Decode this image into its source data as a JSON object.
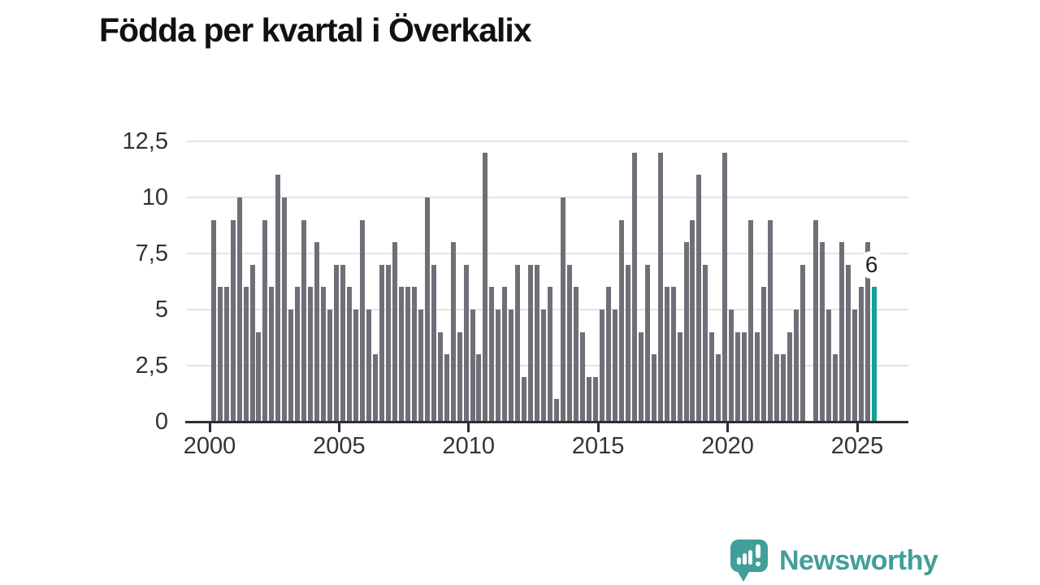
{
  "title": "Födda per kvartal i Överkalix",
  "chart_data": {
    "type": "bar",
    "title": "Födda per kvartal i Överkalix",
    "frequency": "quarterly",
    "x_start": "2000-Q1",
    "x_end": "2025-Q3",
    "values": [
      9,
      6,
      6,
      9,
      10,
      6,
      7,
      4,
      9,
      6,
      11,
      10,
      5,
      6,
      9,
      6,
      8,
      6,
      5,
      7,
      7,
      6,
      5,
      9,
      5,
      3,
      7,
      7,
      8,
      6,
      6,
      6,
      5,
      10,
      7,
      4,
      3,
      8,
      4,
      7,
      5,
      3,
      12,
      6,
      5,
      6,
      5,
      7,
      2,
      7,
      7,
      5,
      6,
      1,
      10,
      7,
      6,
      4,
      2,
      2,
      5,
      6,
      5,
      9,
      7,
      12,
      4,
      7,
      3,
      12,
      6,
      6,
      4,
      8,
      9,
      11,
      7,
      4,
      3,
      12,
      5,
      4,
      4,
      9,
      4,
      6,
      9,
      3,
      3,
      4,
      5,
      7,
      0,
      9,
      8,
      5,
      3,
      8,
      7,
      5,
      6,
      8,
      6
    ],
    "x_tick_labels": [
      "2000",
      "2005",
      "2010",
      "2015",
      "2020",
      "2025"
    ],
    "y_tick_labels": [
      "0",
      "2,5",
      "5",
      "7,5",
      "10",
      "12,5"
    ],
    "y_tick_values": [
      0,
      2.5,
      5,
      7.5,
      10,
      12.5
    ],
    "ylim": [
      0,
      12.5
    ],
    "grid": "horizontal",
    "legend": "none",
    "bar_color": "#6F6F78",
    "highlight_color": "#15A196",
    "highlight_index": 102,
    "annotation": {
      "text": "6",
      "target": "2025-Q3"
    }
  },
  "branding": {
    "name": "Newsworthy",
    "logo_icon": "speech-bubble-bar-chart-icon",
    "color": "#429E99"
  }
}
